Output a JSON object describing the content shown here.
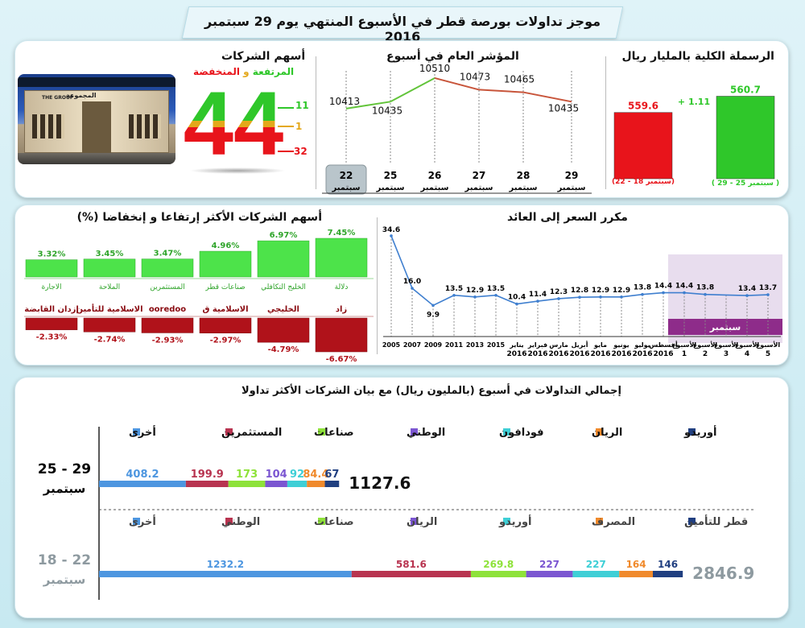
{
  "header": {
    "title": "موجز تداولات بورصة قطر في الأسبوع المنتهي يوم 29 سبتمبر 2016"
  },
  "market_cap": {
    "title": "الرسملة الكلية بالمليار ريال",
    "prev_value": "559.6",
    "curr_value": "560.7",
    "change": "+ 1.11",
    "prev_label": "(سبتمبر 18 - 22)",
    "curr_label": "( سبتمبر 25 - 29 )",
    "prev_color": "#e8141b",
    "curr_color": "#2fc72a"
  },
  "index": {
    "title": "المؤشر العام في أسبوع",
    "month": "سبتمبر",
    "values": [
      10413,
      10435,
      10510,
      10473,
      10465,
      10435
    ],
    "days": [
      "22",
      "25",
      "26",
      "27",
      "28",
      "29"
    ],
    "labels": [
      "10413",
      "10435",
      "10510",
      "10473",
      "10465",
      "10435"
    ]
  },
  "stocks": {
    "title": "أسهم الشركات",
    "subtitle_up": "المرتفعة",
    "subtitle_and": "و",
    "subtitle_down": "المنخفضة",
    "total": "44",
    "up": "11",
    "flat": "1",
    "down": "32",
    "photo_caption": "THE GROUP",
    "photo_arabic": "المجموعة"
  },
  "movers": {
    "title": "أسهم الشركات الأكثر إرتفاعا و إنخفاضا (%)",
    "gainers": [
      {
        "name": "دلالة",
        "pct": "7.45%",
        "value": 7.45
      },
      {
        "name": "الخليج التكافلي",
        "pct": "6.97%",
        "value": 6.97
      },
      {
        "name": "صناعات قطر",
        "pct": "4.96%",
        "value": 4.96
      },
      {
        "name": "المستثمرين",
        "pct": "3.47%",
        "value": 3.47
      },
      {
        "name": "الملاحة",
        "pct": "3.45%",
        "value": 3.45
      },
      {
        "name": "الاجارة",
        "pct": "3.32%",
        "value": 3.32
      }
    ],
    "losers": [
      {
        "name": "زاد",
        "pct": "-6.67%",
        "value": -6.67
      },
      {
        "name": "الخليجي",
        "pct": "-4.79%",
        "value": -4.79
      },
      {
        "name": "الاسلامية ق",
        "pct": "-2.97%",
        "value": -2.97
      },
      {
        "name": "ooredoo",
        "pct": "-2.93%",
        "value": -2.93
      },
      {
        "name": "الاسلامية للتأمين",
        "pct": "-2.74%",
        "value": -2.74
      },
      {
        "name": "إزدان القابضة",
        "pct": "-2.33%",
        "value": -2.33
      }
    ]
  },
  "pe": {
    "title": "مكرر السعر إلى العائد",
    "september_label": "سبتمبر",
    "points": [
      {
        "l1": "2005",
        "l2": "",
        "v": 34.6
      },
      {
        "l1": "2007",
        "l2": "",
        "v": 16.0
      },
      {
        "l1": "2009",
        "l2": "",
        "v": 9.9
      },
      {
        "l1": "2011",
        "l2": "",
        "v": 13.5
      },
      {
        "l1": "2013",
        "l2": "",
        "v": 12.9
      },
      {
        "l1": "2015",
        "l2": "",
        "v": 13.5
      },
      {
        "l1": "يناير",
        "l2": "2016",
        "v": 10.4
      },
      {
        "l1": "فبراير",
        "l2": "2016",
        "v": 11.4
      },
      {
        "l1": "مارس",
        "l2": "2016",
        "v": 12.3
      },
      {
        "l1": "أبريل",
        "l2": "2016",
        "v": 12.8
      },
      {
        "l1": "مايو",
        "l2": "2016",
        "v": 12.9
      },
      {
        "l1": "يونيو",
        "l2": "2016",
        "v": 12.9
      },
      {
        "l1": "يوليو",
        "l2": "2016",
        "v": 13.8
      },
      {
        "l1": "أغسطس",
        "l2": "2016",
        "v": 14.4
      },
      {
        "l1": "الأسبوع",
        "l2": "1",
        "v": 14.4
      },
      {
        "l1": "الأسبوع",
        "l2": "2",
        "v": 13.8
      },
      {
        "l1": "الأسبوع",
        "l2": "3",
        "v": null
      },
      {
        "l1": "الأسبوع",
        "l2": "4",
        "v": 13.4
      },
      {
        "l1": "الأسبوع",
        "l2": "5",
        "v": 13.7
      }
    ],
    "labels": [
      "34.6",
      "16.0",
      "9.9",
      "13.5",
      "12.9",
      "13.5",
      "10.4",
      "11.4",
      "12.3",
      "12.8",
      "12.9",
      "12.9",
      "13.8",
      "14.4",
      "14.4",
      "13.8",
      "",
      "13.4",
      "13.7"
    ]
  },
  "trading": {
    "title": "إجمالي التداولات في أسبوع (بالمليون ريال) مع  بيان الشركات الأكثر تداولا",
    "week1": {
      "label1": "25 - 29",
      "label2": "سبتمبر",
      "total": "1127.6",
      "segments": [
        {
          "name": "أوريدو",
          "value": 67,
          "label": "67",
          "color": "#203f80"
        },
        {
          "name": "الريان",
          "value": 84.4,
          "label": "84.4",
          "color": "#f08a2c"
        },
        {
          "name": "فودافون",
          "value": 92,
          "label": "92",
          "color": "#3fcfd6"
        },
        {
          "name": "الوطني",
          "value": 104,
          "label": "104",
          "color": "#7b56d1"
        },
        {
          "name": "صناعات",
          "value": 173,
          "label": "173",
          "color": "#8ee23a"
        },
        {
          "name": "المستثمرين",
          "value": 199.9,
          "label": "199.9",
          "color": "#b83450"
        },
        {
          "name": "أخرى",
          "value": 408.2,
          "label": "408.2",
          "color": "#4d96e0"
        }
      ]
    },
    "week2": {
      "label1": "18 - 22",
      "label2": "سبتمبر",
      "total": "2846.9",
      "segments": [
        {
          "name": "قطر للتأمين",
          "value": 146,
          "label": "146",
          "color": "#203f80"
        },
        {
          "name": "المصرف",
          "value": 164,
          "label": "164",
          "color": "#f08a2c"
        },
        {
          "name": "أوريدو",
          "value": 227,
          "label": "227",
          "color": "#3fcfd6"
        },
        {
          "name": "الريان",
          "value": 227,
          "label": "227",
          "color": "#7b56d1"
        },
        {
          "name": "صناعات",
          "value": 269.8,
          "label": "269.8",
          "color": "#8ee23a"
        },
        {
          "name": "الوطني",
          "value": 581.6,
          "label": "581.6",
          "color": "#b83450"
        },
        {
          "name": "أخرى",
          "value": 1232.2,
          "label": "1232.2",
          "color": "#4d96e0"
        }
      ]
    }
  },
  "chart_data": [
    {
      "type": "bar",
      "title": "الرسملة الكلية بالمليار ريال",
      "categories": [
        "(سبتمبر 18 - 22)",
        "( سبتمبر 25 - 29 )"
      ],
      "values": [
        559.6,
        560.7
      ]
    },
    {
      "type": "line",
      "title": "المؤشر العام في أسبوع",
      "categories": [
        "22 سبتمبر",
        "25 سبتمبر",
        "26 سبتمبر",
        "27 سبتمبر",
        "28 سبتمبر",
        "29 سبتمبر"
      ],
      "values": [
        10413,
        10435,
        10510,
        10473,
        10465,
        10435
      ]
    },
    {
      "type": "bar",
      "title": "أسهم الشركات الأكثر إرتفاعا و إنخفاضا (%)",
      "series": [
        {
          "name": "gainers",
          "categories": [
            "دلالة",
            "الخليج التكافلي",
            "صناعات قطر",
            "المستثمرين",
            "الملاحة",
            "الاجارة"
          ],
          "values": [
            7.45,
            6.97,
            4.96,
            3.47,
            3.45,
            3.32
          ]
        },
        {
          "name": "losers",
          "categories": [
            "زاد",
            "الخليجي",
            "الاسلامية ق",
            "ooredoo",
            "الاسلامية للتأمين",
            "إزدان القابضة"
          ],
          "values": [
            -6.67,
            -4.79,
            -2.97,
            -2.93,
            -2.74,
            -2.33
          ]
        }
      ]
    },
    {
      "type": "line",
      "title": "مكرر السعر إلى العائد",
      "x": [
        "2005",
        "2007",
        "2009",
        "2011",
        "2013",
        "2015",
        "يناير 2016",
        "فبراير 2016",
        "مارس 2016",
        "أبريل 2016",
        "مايو 2016",
        "يونيو 2016",
        "يوليو 2016",
        "أغسطس 2016",
        "الأسبوع 1",
        "الأسبوع 2",
        "الأسبوع 3",
        "الأسبوع 4",
        "الأسبوع 5"
      ],
      "values": [
        34.6,
        16.0,
        9.9,
        13.5,
        12.9,
        13.5,
        10.4,
        11.4,
        12.3,
        12.8,
        12.9,
        12.9,
        13.8,
        14.4,
        14.4,
        13.8,
        null,
        13.4,
        13.7
      ]
    },
    {
      "type": "bar",
      "title": "إجمالي التداولات في أسبوع (بالمليون ريال) مع  بيان الشركات الأكثر تداولا",
      "categories": [
        "25 - 29 سبتمبر",
        "18 - 22 سبتمبر"
      ],
      "series": [
        {
          "week": "25 - 29 سبتمبر",
          "total": 1127.6,
          "values": {
            "أوريدو": 67,
            "الريان": 84.4,
            "فودافون": 92,
            "الوطني": 104,
            "صناعات": 173,
            "المستثمرين": 199.9,
            "أخرى": 408.2
          }
        },
        {
          "week": "18 - 22 سبتمبر",
          "total": 2846.9,
          "values": {
            "قطر للتأمين": 146,
            "المصرف": 164,
            "أوريدو": 227,
            "الريان": 227,
            "صناعات": 269.8,
            "الوطني": 581.6,
            "أخرى": 1232.2
          }
        }
      ]
    }
  ]
}
